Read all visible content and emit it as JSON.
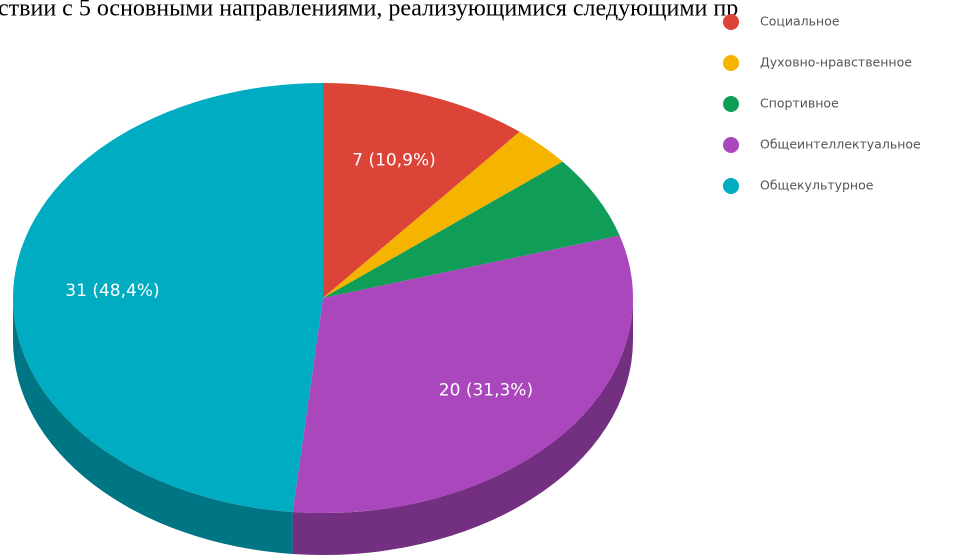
{
  "chart_data": {
    "type": "pie",
    "title": "ствии с 5 основными направлениями, реализующимися следующими пр",
    "categories": [
      "Социальное",
      "Духовно-нравственное",
      "Спортивное",
      "Общеинтеллектуальное",
      "Общекультурное"
    ],
    "values": [
      7,
      2,
      4,
      20,
      31
    ],
    "value_labels": [
      "7 (10,9%)",
      null,
      null,
      "20 (31,3%)",
      "31 (48,4%)"
    ],
    "colors": [
      "#db4437",
      "#f4b400",
      "#0f9d58",
      "#ab47bc",
      "#00acc1"
    ],
    "legend": "right"
  }
}
